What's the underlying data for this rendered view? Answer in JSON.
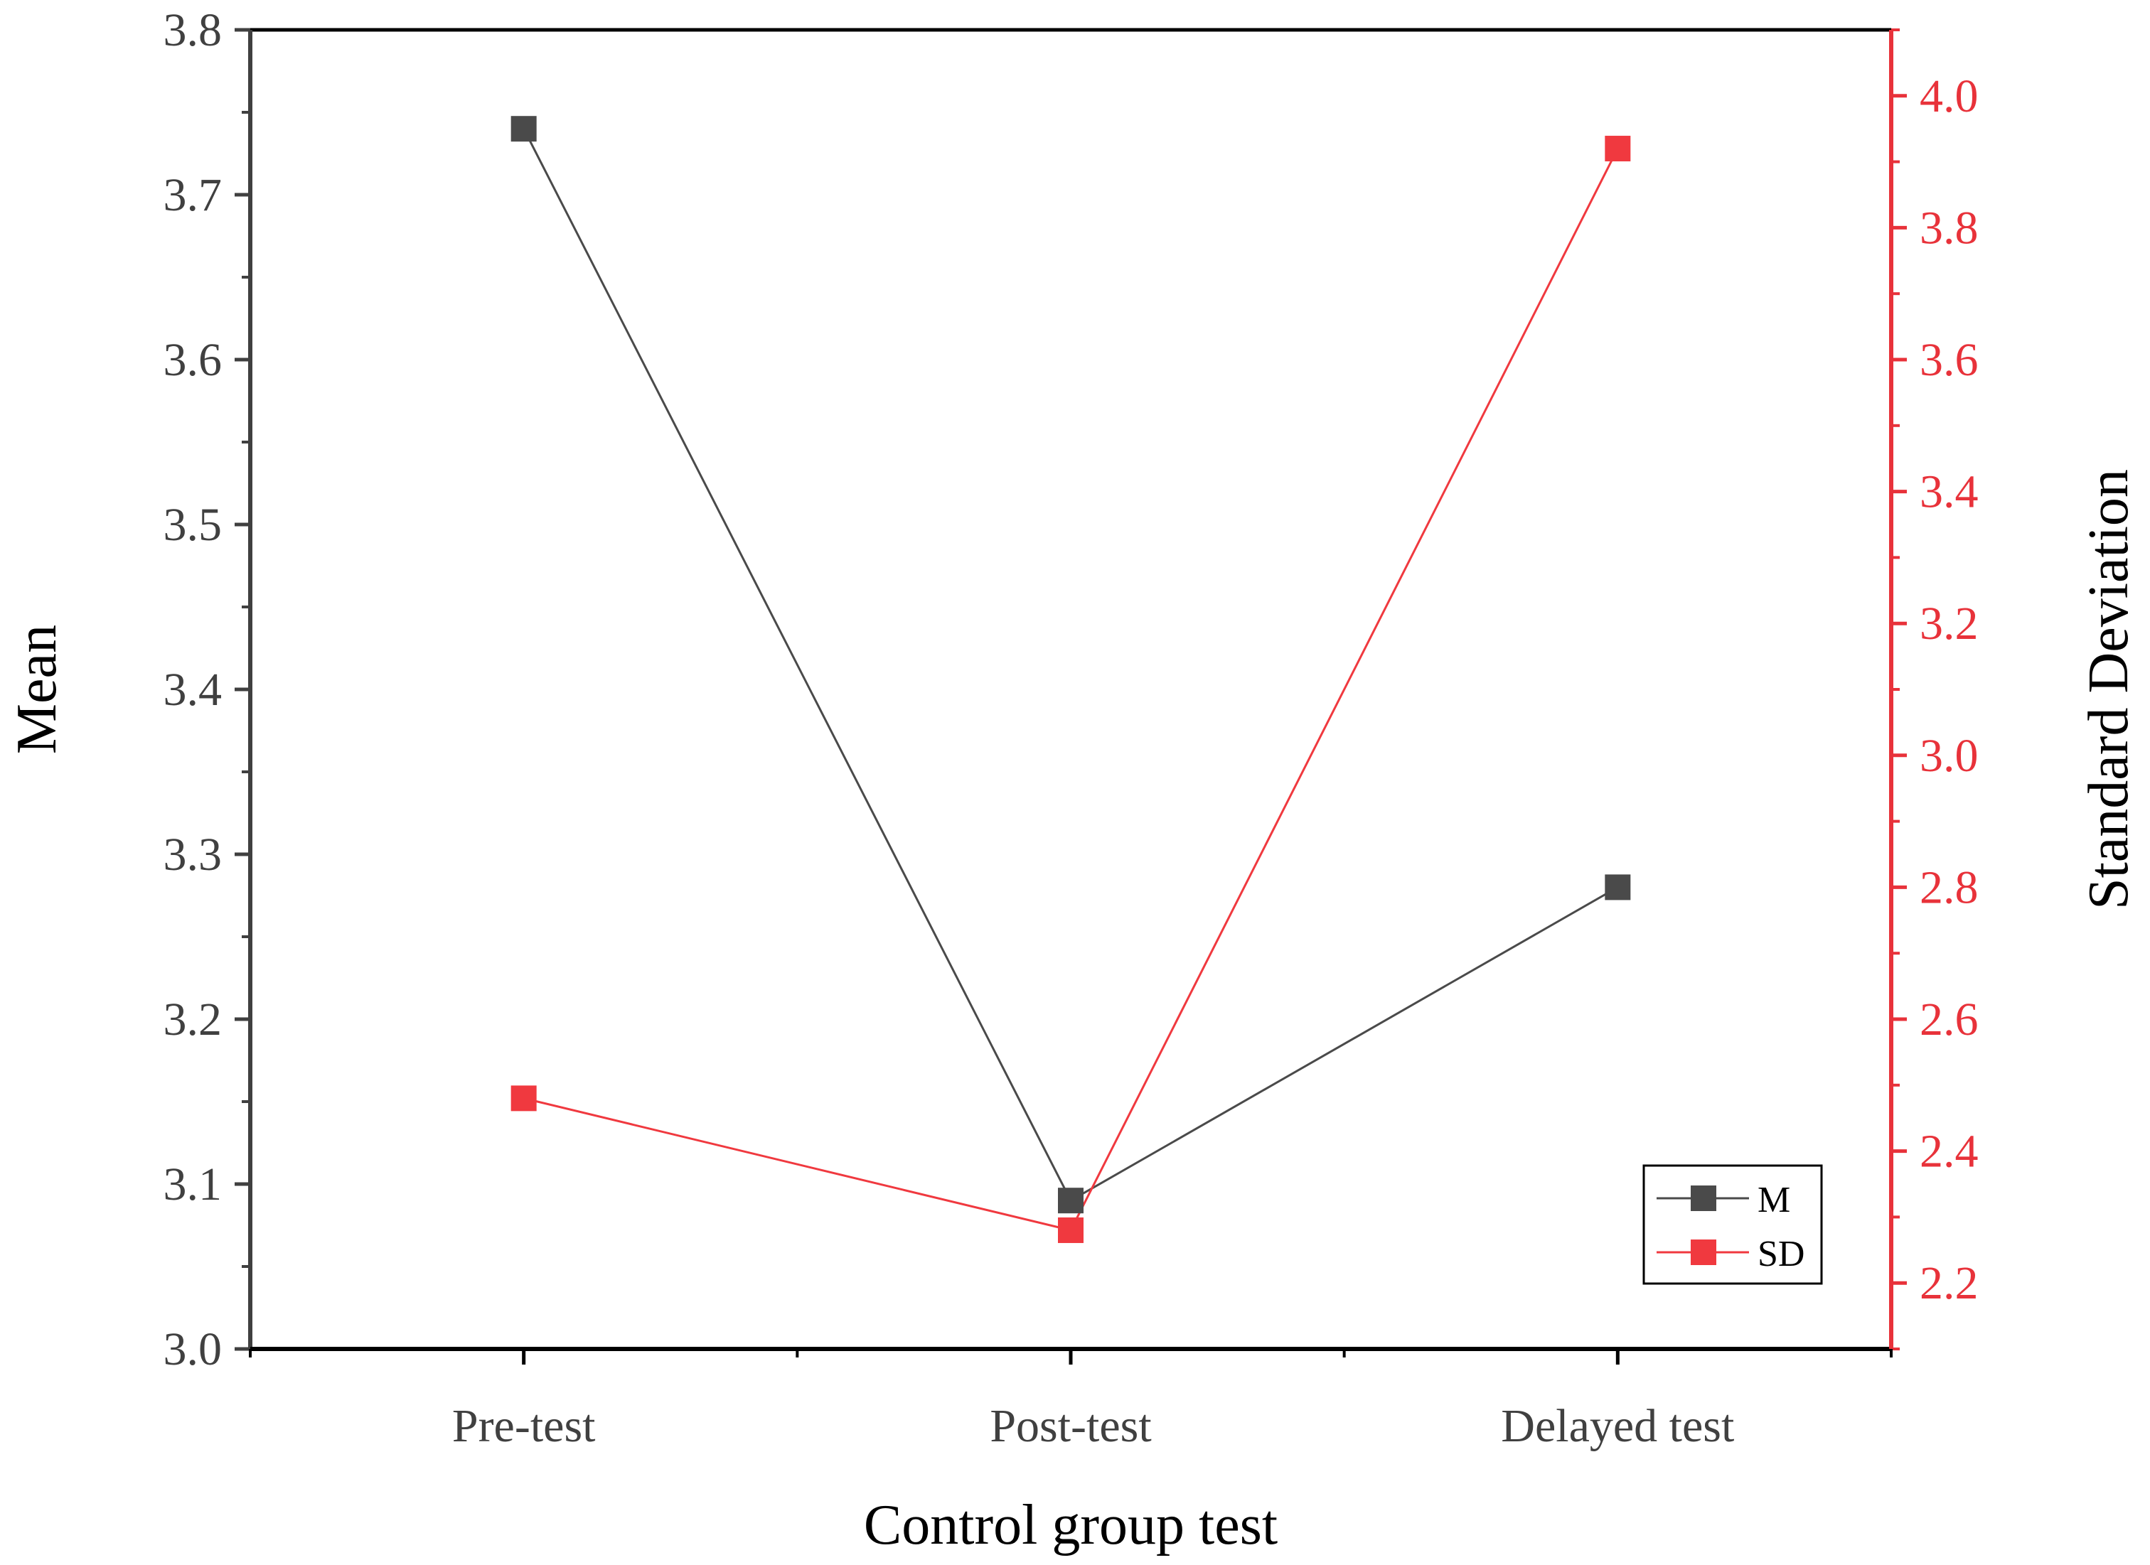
{
  "chart_data": {
    "type": "line",
    "categories": [
      "Pre-test",
      "Post-test",
      "Delayed test"
    ],
    "xlabel": "Control group test",
    "ylabel": "Mean",
    "y2label": "Standard Deviation",
    "ylim": [
      3.0,
      3.8
    ],
    "y2lim": [
      2.1,
      4.1
    ],
    "yticks": [
      "3.0",
      "3.1",
      "3.2",
      "3.3",
      "3.4",
      "3.5",
      "3.6",
      "3.7",
      "3.8"
    ],
    "y2ticks": [
      "2.2",
      "2.4",
      "2.6",
      "2.8",
      "3.0",
      "3.2",
      "3.4",
      "3.6",
      "3.8",
      "4.0"
    ],
    "series": [
      {
        "name": "M",
        "axis": "left",
        "values": [
          3.74,
          3.09,
          3.28
        ],
        "color": "#4a4a4a"
      },
      {
        "name": "SD",
        "axis": "right",
        "values": [
          2.48,
          2.28,
          3.92
        ],
        "color": "#f0393f"
      }
    ],
    "legend_position": "bottom-right",
    "grid": false
  }
}
